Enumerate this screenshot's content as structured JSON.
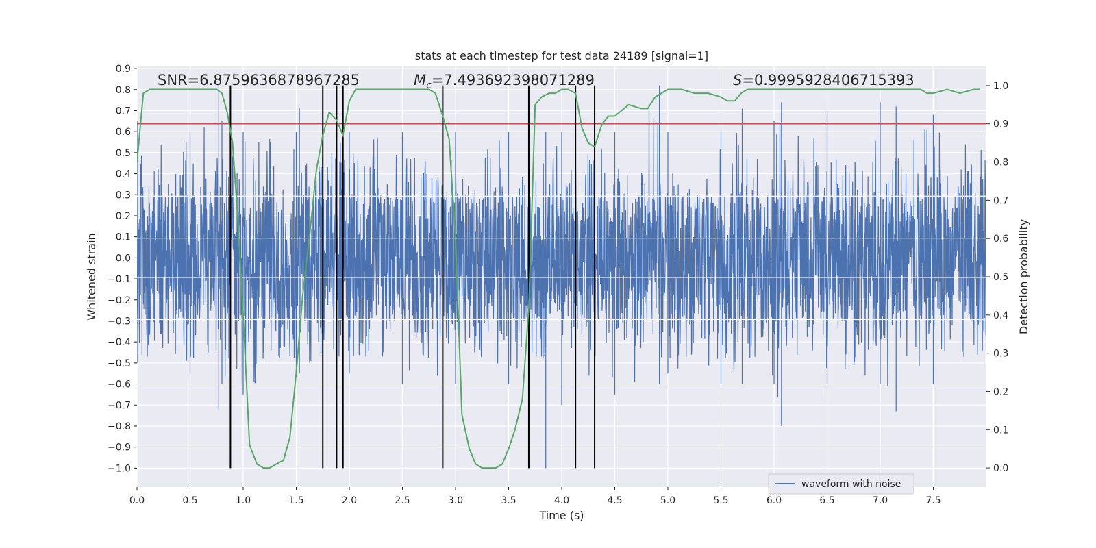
{
  "chart_data": {
    "type": "line",
    "title": "stats at each timestep for test data 24189 [signal=1]",
    "xlabel": "Time (s)",
    "ylabel_left": "Whitened strain",
    "ylabel_right": "Detection probability",
    "xlim": [
      0.0,
      8.0
    ],
    "ylim_left": [
      -1.09,
      0.91
    ],
    "ylim_right": [
      -0.05,
      1.05
    ],
    "x_ticks": [
      "0.0",
      "0.5",
      "1.0",
      "1.5",
      "2.0",
      "2.5",
      "3.0",
      "3.5",
      "4.0",
      "4.5",
      "5.0",
      "5.5",
      "6.0",
      "6.5",
      "7.0",
      "7.5"
    ],
    "y_ticks_left": [
      "0.9",
      "0.8",
      "0.7",
      "0.6",
      "0.5",
      "0.4",
      "0.3",
      "0.2",
      "0.1",
      "0.0",
      "−0.1",
      "−0.2",
      "−0.3",
      "−0.4",
      "−0.5",
      "−0.6",
      "−0.7",
      "−0.8",
      "−0.9",
      "−1.0"
    ],
    "y_ticks_right": [
      "1.0",
      "0.9",
      "0.8",
      "0.7",
      "0.6",
      "0.5",
      "0.4",
      "0.3",
      "0.2",
      "0.1",
      "0.0"
    ],
    "grid": true,
    "legend_position": "lower-right",
    "annotations": {
      "snr": "SNR=6.8759636878967285",
      "mc_symbol": "M",
      "mc_sub": "c",
      "mc_value": "=7.493692398071289",
      "s_symbol": "S",
      "s_value": "=0.9995928406715393"
    },
    "threshold": {
      "value": 0.9,
      "axis": "right",
      "color": "#c44e52"
    },
    "vertical_lines": [
      0.88,
      1.75,
      1.88,
      1.94,
      2.88,
      3.69,
      4.13,
      4.31
    ],
    "vertical_line_range": [
      -1.0,
      0.82
    ],
    "series": [
      {
        "name": "waveform with noise",
        "axis": "left",
        "color": "#4c72b0",
        "peak_envelope_x": [
          0.0,
          0.5,
          0.77,
          0.8,
          1.0,
          1.5,
          1.53,
          2.0,
          2.5,
          3.0,
          3.5,
          3.85,
          4.0,
          4.5,
          4.92,
          5.0,
          5.5,
          5.7,
          6.0,
          6.07,
          6.5,
          7.0,
          7.15,
          7.5,
          8.0
        ],
        "peak_envelope_top": [
          0.65,
          0.6,
          0.82,
          0.65,
          0.6,
          0.6,
          0.71,
          0.6,
          0.6,
          0.6,
          0.6,
          0.6,
          0.6,
          0.6,
          0.82,
          0.6,
          0.6,
          0.71,
          0.65,
          0.74,
          0.7,
          0.74,
          0.72,
          0.68,
          0.58
        ],
        "peak_envelope_bottom": [
          -0.5,
          -0.55,
          -0.72,
          -0.6,
          -0.65,
          -0.55,
          -0.55,
          -0.55,
          -0.6,
          -0.6,
          -0.6,
          -1.0,
          -0.7,
          -0.65,
          -0.6,
          -0.55,
          -0.6,
          -0.6,
          -0.6,
          -0.8,
          -0.6,
          -0.6,
          -0.73,
          -0.6,
          -0.5
        ]
      },
      {
        "name": "detection probability",
        "axis": "right",
        "color": "#55a868",
        "x": [
          0.0,
          0.06,
          0.12,
          0.25,
          0.5,
          0.75,
          0.8,
          0.85,
          0.9,
          0.95,
          1.0,
          1.06,
          1.13,
          1.19,
          1.25,
          1.31,
          1.38,
          1.44,
          1.5,
          1.56,
          1.63,
          1.69,
          1.75,
          1.81,
          1.88,
          1.94,
          2.0,
          2.06,
          2.13,
          2.25,
          2.5,
          2.75,
          2.81,
          2.88,
          2.94,
          3.0,
          3.06,
          3.13,
          3.19,
          3.25,
          3.31,
          3.38,
          3.44,
          3.5,
          3.56,
          3.63,
          3.69,
          3.75,
          3.81,
          3.88,
          3.94,
          4.0,
          4.06,
          4.13,
          4.19,
          4.25,
          4.31,
          4.38,
          4.44,
          4.5,
          4.63,
          4.75,
          4.81,
          4.88,
          5.0,
          5.13,
          5.25,
          5.38,
          5.5,
          5.56,
          5.63,
          5.69,
          5.75,
          6.0,
          6.5,
          7.0,
          7.38,
          7.44,
          7.5,
          7.63,
          7.75,
          7.88,
          7.94
        ],
        "y": [
          0.8,
          0.98,
          0.99,
          0.99,
          0.99,
          0.99,
          0.98,
          0.93,
          0.85,
          0.65,
          0.4,
          0.06,
          0.01,
          0.0,
          0.0,
          0.01,
          0.02,
          0.08,
          0.25,
          0.45,
          0.62,
          0.78,
          0.87,
          0.93,
          0.91,
          0.87,
          0.96,
          0.99,
          0.99,
          0.99,
          0.99,
          0.99,
          0.98,
          0.92,
          0.86,
          0.6,
          0.14,
          0.05,
          0.01,
          0.0,
          0.0,
          0.0,
          0.01,
          0.05,
          0.1,
          0.18,
          0.42,
          0.95,
          0.97,
          0.98,
          0.98,
          0.99,
          0.99,
          0.98,
          0.89,
          0.85,
          0.84,
          0.9,
          0.92,
          0.92,
          0.95,
          0.94,
          0.94,
          0.97,
          0.99,
          0.99,
          0.98,
          0.98,
          0.97,
          0.96,
          0.96,
          0.98,
          0.99,
          0.99,
          0.99,
          0.99,
          0.99,
          0.98,
          0.98,
          0.99,
          0.98,
          0.99,
          0.99
        ]
      }
    ]
  },
  "legend": {
    "label": "waveform with noise"
  }
}
